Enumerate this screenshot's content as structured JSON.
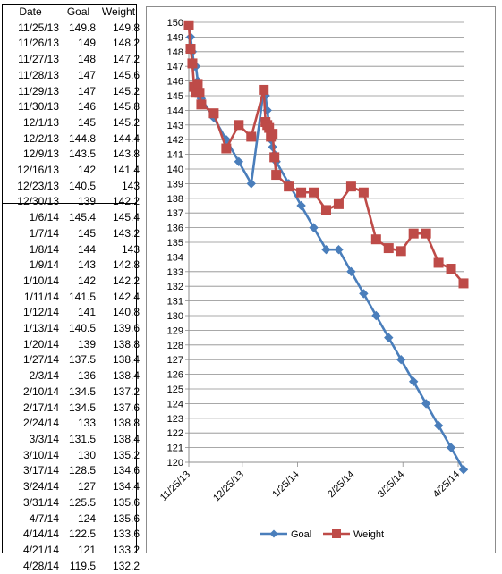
{
  "table": {
    "headers": [
      "Date",
      "Goal",
      "Weight"
    ],
    "rows": [
      [
        "11/25/13",
        "149.8",
        "149.8"
      ],
      [
        "11/26/13",
        "149",
        "148.2"
      ],
      [
        "11/27/13",
        "148",
        "147.2"
      ],
      [
        "11/28/13",
        "147",
        "145.6"
      ],
      [
        "11/29/13",
        "147",
        "145.2"
      ],
      [
        "11/30/13",
        "146",
        "145.8"
      ],
      [
        "12/1/13",
        "145",
        "145.2"
      ],
      [
        "12/2/13",
        "144.8",
        "144.4"
      ],
      [
        "12/9/13",
        "143.5",
        "143.8"
      ],
      [
        "12/16/13",
        "142",
        "141.4"
      ],
      [
        "12/23/13",
        "140.5",
        "143"
      ],
      [
        "12/30/13",
        "139",
        "142.2"
      ],
      [
        "1/6/14",
        "145.4",
        "145.4"
      ],
      [
        "1/7/14",
        "145",
        "143.2"
      ],
      [
        "1/8/14",
        "144",
        "143"
      ],
      [
        "1/9/14",
        "143",
        "142.8"
      ],
      [
        "1/10/14",
        "142",
        "142.2"
      ],
      [
        "1/11/14",
        "141.5",
        "142.4"
      ],
      [
        "1/12/14",
        "141",
        "140.8"
      ],
      [
        "1/13/14",
        "140.5",
        "139.6"
      ],
      [
        "1/20/14",
        "139",
        "138.8"
      ],
      [
        "1/27/14",
        "137.5",
        "138.4"
      ],
      [
        "2/3/14",
        "136",
        "138.4"
      ],
      [
        "2/10/14",
        "134.5",
        "137.2"
      ],
      [
        "2/17/14",
        "134.5",
        "137.6"
      ],
      [
        "2/24/14",
        "133",
        "138.8"
      ],
      [
        "3/3/14",
        "131.5",
        "138.4"
      ],
      [
        "3/10/14",
        "130",
        "135.2"
      ],
      [
        "3/17/14",
        "128.5",
        "134.6"
      ],
      [
        "3/24/14",
        "127",
        "134.4"
      ],
      [
        "3/31/14",
        "125.5",
        "135.6"
      ],
      [
        "4/7/14",
        "124",
        "135.6"
      ],
      [
        "4/14/14",
        "122.5",
        "133.6"
      ],
      [
        "4/21/14",
        "121",
        "133.2"
      ],
      [
        "4/28/14",
        "119.5",
        "132.2"
      ]
    ]
  },
  "chart_data": {
    "type": "line",
    "x": [
      "11/25/13",
      "11/26/13",
      "11/27/13",
      "11/28/13",
      "11/29/13",
      "11/30/13",
      "12/1/13",
      "12/2/13",
      "12/9/13",
      "12/16/13",
      "12/23/13",
      "12/30/13",
      "1/6/14",
      "1/7/14",
      "1/8/14",
      "1/9/14",
      "1/10/14",
      "1/11/14",
      "1/12/14",
      "1/13/14",
      "1/20/14",
      "1/27/14",
      "2/3/14",
      "2/10/14",
      "2/17/14",
      "2/24/14",
      "3/3/14",
      "3/10/14",
      "3/17/14",
      "3/24/14",
      "3/31/14",
      "4/7/14",
      "4/14/14",
      "4/21/14",
      "4/28/14"
    ],
    "series": [
      {
        "name": "Goal",
        "color": "#4a7ebb",
        "marker": "diamond",
        "values": [
          149.8,
          149,
          148,
          147,
          147,
          146,
          145,
          144.8,
          143.5,
          142,
          140.5,
          139,
          145.4,
          145,
          144,
          143,
          142,
          141.5,
          141,
          140.5,
          139,
          137.5,
          136,
          134.5,
          134.5,
          133,
          131.5,
          130,
          128.5,
          127,
          125.5,
          124,
          122.5,
          121,
          119.5
        ]
      },
      {
        "name": "Weight",
        "color": "#be4b48",
        "marker": "square",
        "values": [
          149.8,
          148.2,
          147.2,
          145.6,
          145.2,
          145.8,
          145.2,
          144.4,
          143.8,
          141.4,
          143,
          142.2,
          145.4,
          143.2,
          143,
          142.8,
          142.2,
          142.4,
          140.8,
          139.6,
          138.8,
          138.4,
          138.4,
          137.2,
          137.6,
          138.8,
          138.4,
          135.2,
          134.6,
          134.4,
          135.6,
          135.6,
          133.6,
          133.2,
          132.2
        ]
      }
    ],
    "x_ticks": [
      "11/25/13",
      "12/25/13",
      "1/25/14",
      "2/25/14",
      "3/25/14",
      "4/25/14"
    ],
    "ylim": [
      120,
      150
    ],
    "y_step": 1,
    "grid": true,
    "legend": "bottom",
    "title": "",
    "xlabel": "",
    "ylabel": ""
  }
}
